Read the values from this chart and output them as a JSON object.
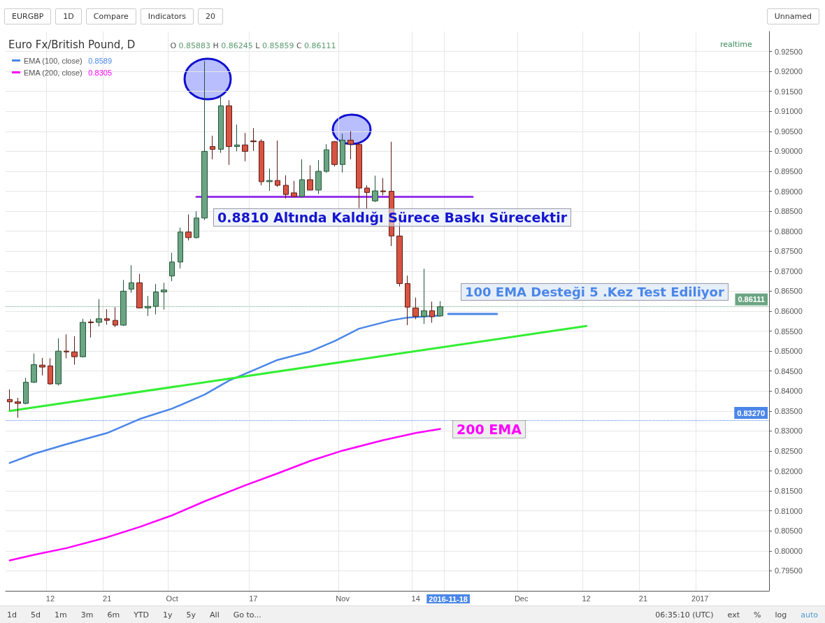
{
  "chart_data": {
    "type": "candlestick",
    "title": "Euro Fx/British Pound, D",
    "subtitle": "O 0.85883 H 0.86245 L 0.85859 C 0.86111",
    "categories": [
      null,
      null,
      null,
      null,
      null,
      "12",
      null,
      null,
      null,
      null,
      null,
      null,
      "21",
      null,
      null,
      null,
      null,
      null,
      null,
      null,
      "Oct",
      null,
      null,
      null,
      null,
      null,
      null,
      null,
      null,
      null,
      "17",
      null,
      null,
      null,
      null,
      null,
      null,
      null,
      null,
      null,
      null,
      "Nov",
      null,
      null,
      null,
      null,
      null,
      null,
      null,
      null,
      "14",
      null,
      null,
      null,
      "2016-11-18",
      null,
      null,
      null,
      null,
      null,
      null,
      null,
      null,
      "Dec",
      null,
      null,
      null,
      null,
      null,
      null,
      null,
      "12",
      null,
      null,
      null,
      null,
      null,
      null,
      "21",
      null,
      null,
      null,
      null,
      null,
      null,
      "2017",
      null,
      null,
      null,
      null,
      null,
      null,
      null,
      null
    ],
    "ohlc": [
      [
        0.8379,
        0.8404,
        0.8352,
        0.8373
      ],
      [
        0.8373,
        0.8383,
        0.8333,
        0.8369
      ],
      [
        0.8369,
        0.8433,
        0.8367,
        0.8422
      ],
      [
        0.8422,
        0.8494,
        0.842,
        0.8466
      ],
      [
        0.8465,
        0.8483,
        0.8439,
        0.846
      ],
      [
        0.8463,
        0.8482,
        0.8416,
        0.8418
      ],
      [
        0.8418,
        0.8532,
        0.8414,
        0.85
      ],
      [
        0.85,
        0.8542,
        0.8482,
        0.8498
      ],
      [
        0.8498,
        0.8537,
        0.8466,
        0.8486
      ],
      [
        0.8486,
        0.8581,
        0.8484,
        0.8572
      ],
      [
        0.8573,
        0.858,
        0.8534,
        0.8571
      ],
      [
        0.8572,
        0.863,
        0.8562,
        0.8581
      ],
      [
        0.8581,
        0.8605,
        0.8566,
        0.8577
      ],
      [
        0.8577,
        0.861,
        0.856,
        0.8565
      ],
      [
        0.8565,
        0.8678,
        0.8563,
        0.865
      ],
      [
        0.8655,
        0.8715,
        0.8646,
        0.8671
      ],
      [
        0.8671,
        0.8693,
        0.8608,
        0.8608
      ],
      [
        0.8608,
        0.8638,
        0.8588,
        0.8612
      ],
      [
        0.8612,
        0.8668,
        0.8592,
        0.8648
      ],
      [
        0.8648,
        0.8671,
        0.8604,
        0.8653
      ],
      [
        0.8688,
        0.8746,
        0.8675,
        0.8723
      ],
      [
        0.8723,
        0.8809,
        0.8707,
        0.8798
      ],
      [
        0.8798,
        0.8842,
        0.8777,
        0.8784
      ],
      [
        0.8784,
        0.885,
        0.8782,
        0.8833
      ],
      [
        0.8833,
        0.9226,
        0.8828,
        0.9
      ],
      [
        0.9012,
        0.9039,
        0.898,
        0.9005
      ],
      [
        0.9005,
        0.914,
        0.8996,
        0.9114
      ],
      [
        0.9114,
        0.9128,
        0.8966,
        0.9012
      ],
      [
        0.9012,
        0.9067,
        0.9,
        0.9016
      ],
      [
        0.9016,
        0.9046,
        0.8975,
        0.9
      ],
      [
        0.9026,
        0.9058,
        0.9001,
        0.9024
      ],
      [
        0.9025,
        0.903,
        0.8915,
        0.8924
      ],
      [
        0.8924,
        0.8957,
        0.8901,
        0.8927
      ],
      [
        0.8927,
        0.9027,
        0.8911,
        0.8915
      ],
      [
        0.8915,
        0.894,
        0.8882,
        0.8892
      ],
      [
        0.8896,
        0.8926,
        0.8885,
        0.8887
      ],
      [
        0.8887,
        0.898,
        0.8885,
        0.8929
      ],
      [
        0.8929,
        0.8965,
        0.8903,
        0.8903
      ],
      [
        0.8903,
        0.8978,
        0.8893,
        0.895
      ],
      [
        0.895,
        0.9018,
        0.8946,
        0.9004
      ],
      [
        0.9024,
        0.9026,
        0.8962,
        0.8967
      ],
      [
        0.8967,
        0.9044,
        0.8947,
        0.9028
      ],
      [
        0.9028,
        0.905,
        0.898,
        0.9018
      ],
      [
        0.9017,
        0.9023,
        0.8858,
        0.8908
      ],
      [
        0.8908,
        0.8915,
        0.8857,
        0.8897
      ],
      [
        0.8876,
        0.8939,
        0.8873,
        0.8901
      ],
      [
        0.8901,
        0.8933,
        0.889,
        0.8899
      ],
      [
        0.89,
        0.9024,
        0.8763,
        0.8788
      ],
      [
        0.8788,
        0.8825,
        0.8662,
        0.8669
      ],
      [
        0.8669,
        0.8689,
        0.8565,
        0.861
      ],
      [
        0.8608,
        0.8634,
        0.858,
        0.8587
      ],
      [
        0.8587,
        0.8706,
        0.8568,
        0.8601
      ],
      [
        0.8601,
        0.8624,
        0.8571,
        0.8586
      ],
      [
        0.8588,
        0.8625,
        0.8586,
        0.8611
      ],
      null,
      null,
      null,
      null,
      null,
      null,
      null,
      null,
      null,
      null,
      null,
      null,
      null,
      null,
      null,
      null,
      null,
      null,
      null,
      null,
      null,
      null,
      null,
      null,
      null,
      null,
      null,
      null,
      null,
      null,
      null,
      null,
      null,
      null,
      null,
      null,
      null,
      null,
      null,
      null
    ],
    "series": [
      {
        "name": "EMA (100, close)",
        "type": "line",
        "color": "#4a86e8",
        "values": [
          0.822,
          null,
          null,
          0.8243,
          null,
          null,
          null,
          0.8267,
          null,
          null,
          null,
          null,
          0.8295,
          null,
          null,
          null,
          0.833,
          null,
          null,
          null,
          0.8356,
          null,
          null,
          null,
          0.8391,
          null,
          null,
          0.8426,
          null,
          null,
          0.8452,
          null,
          null,
          0.8478,
          null,
          null,
          null,
          0.8499,
          null,
          null,
          0.8525,
          null,
          null,
          0.8556,
          null,
          null,
          null,
          0.8577,
          null,
          0.8584,
          null,
          null,
          null,
          0.8589,
          null,
          null,
          null,
          null,
          null,
          null,
          null,
          null,
          null,
          null,
          null,
          null,
          null,
          null,
          null,
          null,
          null,
          null,
          null,
          null,
          null,
          null,
          null,
          null,
          null,
          null,
          null,
          null,
          null,
          null,
          null,
          null,
          null,
          null,
          null,
          null,
          null,
          null,
          null,
          null
        ]
      },
      {
        "name": "EMA (200, close)",
        "type": "line",
        "color": "#ff00ff",
        "values": [
          0.7976,
          null,
          null,
          0.799,
          null,
          null,
          null,
          0.8007,
          null,
          null,
          null,
          null,
          0.8034,
          null,
          null,
          null,
          0.806,
          null,
          null,
          null,
          0.8089,
          null,
          null,
          null,
          0.8124,
          null,
          null,
          null,
          null,
          0.8164,
          null,
          null,
          null,
          0.8194,
          null,
          null,
          null,
          0.8225,
          null,
          null,
          null,
          0.8251,
          null,
          null,
          null,
          null,
          0.8277,
          null,
          null,
          null,
          0.8295,
          null,
          null,
          0.8305,
          null,
          null,
          null,
          null,
          null,
          null,
          null,
          null,
          null,
          null,
          null,
          null,
          null,
          null,
          null,
          null,
          null,
          null,
          null,
          null,
          null,
          null,
          null,
          null,
          null,
          null,
          null,
          null,
          null,
          null,
          null,
          null,
          null,
          null,
          null,
          null,
          null,
          null,
          null,
          null
        ]
      },
      {
        "type": "line",
        "color": "#33ee33",
        "values": [
          0.835,
          null,
          null,
          null,
          null,
          null,
          null,
          null,
          null,
          null,
          null,
          null,
          null,
          null,
          null,
          null,
          null,
          null,
          null,
          null,
          null,
          null,
          null,
          null,
          null,
          null,
          null,
          null,
          null,
          null,
          null,
          null,
          null,
          null,
          null,
          null,
          null,
          null,
          null,
          null,
          null,
          null,
          null,
          null,
          null,
          null,
          null,
          null,
          null,
          null,
          null,
          null,
          null,
          null,
          null,
          null,
          null,
          null,
          null,
          null,
          null,
          null,
          null,
          null,
          null,
          null,
          null,
          null,
          null,
          null,
          null,
          0.8563,
          null,
          null,
          null,
          null,
          null,
          null,
          null,
          null,
          null,
          null,
          null,
          null,
          null,
          null,
          null,
          null,
          null,
          null,
          null,
          null,
          null,
          null
        ]
      },
      {
        "type": "line",
        "color": "#9933ee",
        "values": [
          null,
          null,
          null,
          null,
          null,
          null,
          null,
          null,
          null,
          null,
          null,
          null,
          null,
          null,
          null,
          null,
          null,
          null,
          null,
          null,
          null,
          null,
          null,
          0.8886,
          null,
          null,
          null,
          null,
          null,
          null,
          null,
          null,
          null,
          null,
          null,
          null,
          null,
          null,
          null,
          null,
          null,
          null,
          null,
          null,
          null,
          null,
          null,
          null,
          null,
          null,
          null,
          null,
          null,
          null,
          null,
          null,
          null,
          0.8886,
          null,
          null,
          null,
          null,
          null,
          null,
          null,
          null,
          null,
          null,
          null,
          null,
          null,
          null,
          null,
          null,
          null,
          null,
          null,
          null,
          null,
          null,
          null,
          null,
          null,
          null,
          null,
          null,
          null,
          null,
          null,
          null,
          null,
          null,
          null,
          null
        ]
      },
      {
        "type": "line",
        "color": "#4a86e8",
        "values": [
          null,
          null,
          null,
          null,
          null,
          null,
          null,
          null,
          null,
          null,
          null,
          null,
          null,
          null,
          null,
          null,
          null,
          null,
          null,
          null,
          null,
          null,
          null,
          null,
          null,
          null,
          null,
          null,
          null,
          null,
          null,
          null,
          null,
          null,
          null,
          null,
          null,
          null,
          null,
          null,
          null,
          null,
          null,
          null,
          null,
          null,
          null,
          null,
          null,
          null,
          null,
          null,
          null,
          null,
          0.8593,
          null,
          null,
          null,
          null,
          null,
          0.8593,
          null,
          null,
          null,
          null,
          null,
          null,
          null,
          null,
          null,
          null,
          null,
          null,
          null,
          null,
          null,
          null,
          null,
          null,
          null,
          null,
          null,
          null,
          null,
          null,
          null,
          null,
          null,
          null,
          null,
          null,
          null,
          null,
          null
        ]
      }
    ],
    "ylim": [
      0.79,
      0.93
    ],
    "yticks": [
      {
        "value": 0.795,
        "label": "0.79500"
      },
      {
        "value": 0.8,
        "label": "0.80000"
      },
      {
        "value": 0.805,
        "label": "0.80500"
      },
      {
        "value": 0.81,
        "label": "0.81000"
      },
      {
        "value": 0.815,
        "label": "0.81500"
      },
      {
        "value": 0.82,
        "label": "0.82000"
      },
      {
        "value": 0.825,
        "label": "0.82500"
      },
      {
        "value": 0.83,
        "label": "0.83000"
      },
      {
        "value": 0.835,
        "label": "0.83500"
      },
      {
        "value": 0.84,
        "label": "0.84000"
      },
      {
        "value": 0.845,
        "label": "0.84500"
      },
      {
        "value": 0.85,
        "label": "0.85000"
      },
      {
        "value": 0.855,
        "label": "0.85500"
      },
      {
        "value": 0.86,
        "label": "0.86000"
      },
      {
        "value": 0.865,
        "label": "0.86500"
      },
      {
        "value": 0.87,
        "label": "0.87000"
      },
      {
        "value": 0.875,
        "label": "0.87500"
      },
      {
        "value": 0.88,
        "label": "0.88000"
      },
      {
        "value": 0.885,
        "label": "0.88500"
      },
      {
        "value": 0.89,
        "label": "0.89000"
      },
      {
        "value": 0.895,
        "label": "0.89500"
      },
      {
        "value": 0.9,
        "label": "0.90000"
      },
      {
        "value": 0.905,
        "label": "0.90500"
      },
      {
        "value": 0.91,
        "label": "0.91000"
      },
      {
        "value": 0.915,
        "label": "0.91500"
      },
      {
        "value": 0.92,
        "label": "0.92000"
      },
      {
        "value": 0.925,
        "label": "0.92500"
      }
    ],
    "ref_lines": [
      {
        "axis": "y",
        "value": 0.86111,
        "label": "0.86111",
        "color": "#6ba583",
        "line_style": "dotted"
      },
      {
        "axis": "y",
        "value": 0.8327,
        "label": "0.83270",
        "color": "#4a86e8",
        "line_style": "dotted"
      }
    ],
    "annotations": [
      "0.8810 Altında Kaldığı Sürece Baskı Sürecektir",
      "100 EMA Desteği 5 .Kez Test Ediliyor",
      "200 EMA",
      "realtime",
      "EURGBP",
      "1D",
      "Compare",
      "Indicators",
      "20",
      "Unnamed",
      "1d",
      "5d",
      "1m",
      "3m",
      "6m",
      "YTD",
      "1y",
      "5y",
      "All",
      "Go to...",
      "06:35:10 (UTC)",
      "ext",
      "%",
      "log",
      "auto",
      "0.8589",
      "0.8305"
    ],
    "grid": true,
    "legend": "top left",
    "marker": "none",
    "line_style": "solid"
  }
}
